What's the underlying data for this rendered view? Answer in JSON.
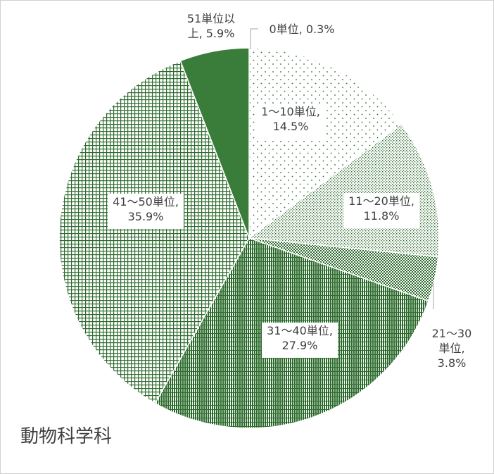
{
  "chart_data": {
    "type": "pie",
    "title": "動物科学科",
    "categories": [
      "0単位",
      "1～10単位",
      "11～20単位",
      "21～30単位",
      "31～40単位",
      "41～50単位",
      "51単位以上"
    ],
    "values": [
      0.3,
      14.5,
      11.8,
      3.8,
      27.9,
      35.9,
      5.9
    ],
    "unit": "%",
    "labels": [
      [
        "0単位, 0.3%"
      ],
      [
        "1～10単位,",
        "14.5%"
      ],
      [
        "11～20単位,",
        "11.8%"
      ],
      [
        "21～30",
        "単位,",
        "3.8%"
      ],
      [
        "31～40単位,",
        "27.9%"
      ],
      [
        "41～50単位,",
        "35.9%"
      ],
      [
        "51単位以",
        "上, 5.9%"
      ]
    ],
    "colors": [
      "#3a7a3a",
      "#2e6b2e",
      "#2e6b2e",
      "#2e6b2e",
      "#2e6b2e",
      "#2e6b2e",
      "#3a7d3a"
    ],
    "fills": [
      "dots-sparse",
      "dots-sparse",
      "dots-dense",
      "checker",
      "vertical-lines",
      "grid",
      "solid"
    ]
  }
}
